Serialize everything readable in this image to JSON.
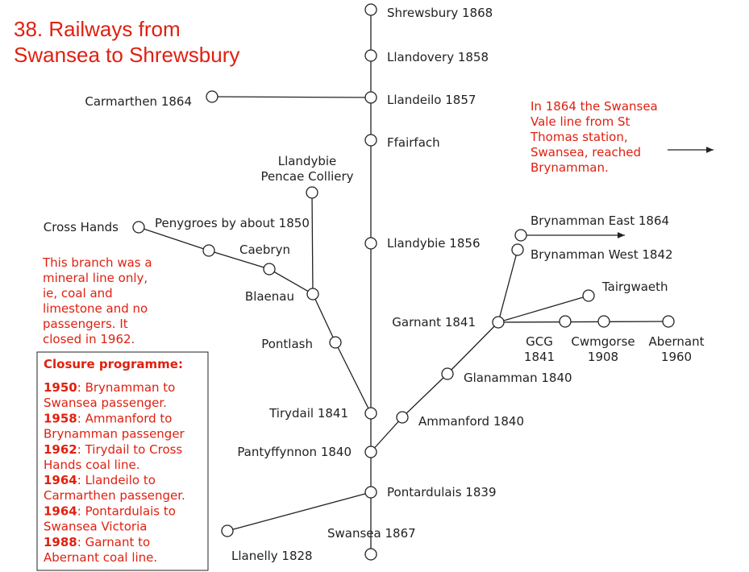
{
  "title": {
    "lines": [
      "38. Railways from",
      "Swansea to Shrewsbury"
    ]
  },
  "nodes": [
    {
      "lines": [
        "Shrewsbury 1868"
      ]
    },
    {
      "lines": [
        "Llandovery 1858"
      ]
    },
    {
      "lines": [
        "Llandeilo 1857"
      ]
    },
    {
      "lines": [
        "Carmarthen 1864"
      ]
    },
    {
      "lines": [
        "Ffairfach"
      ]
    },
    {
      "lines": [
        "Llandybie 1856"
      ]
    },
    {
      "lines": [
        "Llandybie",
        "Pencae Colliery"
      ]
    },
    {
      "lines": [
        "Cross Hands"
      ]
    },
    {
      "lines": [
        "Penygroes by about 1850"
      ]
    },
    {
      "lines": [
        "Caebryn"
      ]
    },
    {
      "lines": [
        "Blaenau"
      ]
    },
    {
      "lines": [
        "Pontlash"
      ]
    },
    {
      "lines": [
        "Tirydail 1841"
      ]
    },
    {
      "lines": [
        "Pantyffynnon 1840"
      ]
    },
    {
      "lines": [
        "Pontardulais 1839"
      ]
    },
    {
      "lines": [
        "Swansea 1867"
      ]
    },
    {
      "lines": [
        "Llanelly 1828"
      ]
    },
    {
      "lines": [
        "Ammanford 1840"
      ]
    },
    {
      "lines": [
        "Glanamman 1840"
      ]
    },
    {
      "lines": [
        "Garnant 1841"
      ]
    },
    {
      "lines": [
        "Brynamman West 1842"
      ]
    },
    {
      "lines": [
        "Brynamman East 1864"
      ]
    },
    {
      "lines": [
        "Tairgwaeth"
      ]
    },
    {
      "lines": [
        "GCG",
        "1841"
      ]
    },
    {
      "lines": [
        "Cwmgorse",
        "1908"
      ]
    },
    {
      "lines": [
        "Abernant",
        "1960"
      ]
    }
  ],
  "notes": {
    "swansea_vale": {
      "lines": [
        "In 1864 the Swansea",
        "Vale line from St",
        "Thomas station,",
        "Swansea, reached",
        "Brynamman."
      ]
    },
    "branch": {
      "lines": [
        "This branch was a",
        "mineral line only,",
        "ie, coal and",
        "limestone and no",
        "passengers. It",
        "closed in 1962."
      ]
    }
  },
  "closure": {
    "heading": "Closure programme:",
    "items": [
      {
        "year": "1950",
        "lines": [
          ": Brynamman to",
          "Swansea passenger."
        ]
      },
      {
        "year": "1958",
        "lines": [
          ": Ammanford to",
          "Brynamman passenger"
        ]
      },
      {
        "year": "1962",
        "lines": [
          ": Tirydail to Cross",
          "Hands coal line."
        ]
      },
      {
        "year": "1964",
        "lines": [
          ": Llandeilo to",
          "Carmarthen passenger."
        ]
      },
      {
        "year": "1964",
        "lines": [
          ": Pontardulais to",
          "Swansea Victoria"
        ]
      },
      {
        "year": "1988",
        "lines": [
          ": Garnant to",
          "Abernant coal line."
        ]
      }
    ]
  }
}
